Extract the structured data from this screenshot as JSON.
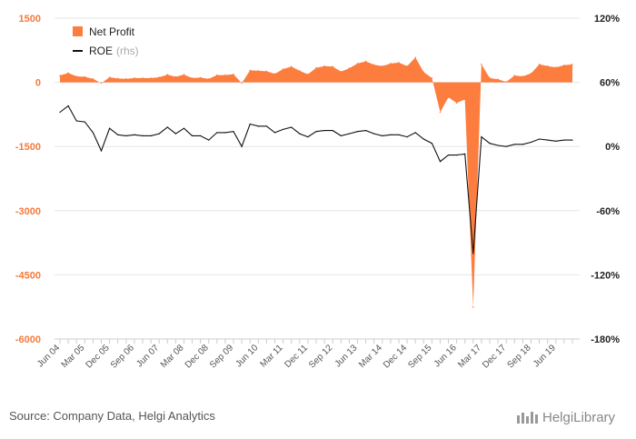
{
  "footer": {
    "source": "Source: Company Data, Helgi Analytics",
    "logo": "HelgiLibrary"
  },
  "colors": {
    "net_profit": "#fd7d3f",
    "roe": "#111111",
    "left_axis_text": "#f47a3c",
    "grid": "#e6e6e6"
  },
  "chart_data": {
    "type": "area",
    "title": "",
    "xlabel": "",
    "ylabel": "",
    "grid": true,
    "legend_position": "top-left",
    "x_tick_labels": [
      "Jun 04",
      "Mar 05",
      "Dec 05",
      "Sep 06",
      "Jun 07",
      "Mar 08",
      "Dec 08",
      "Sep 09",
      "Jun 10",
      "Mar 11",
      "Dec 11",
      "Sep 12",
      "Jun 13",
      "Mar 14",
      "Dec 14",
      "Sep 15",
      "Jun 16",
      "Mar 17",
      "Dec 17",
      "Sep 18",
      "Jun 19"
    ],
    "y_left": {
      "ylim": [
        -6000,
        1500
      ],
      "ticks": [
        -6000,
        -4500,
        -3000,
        -1500,
        0,
        1500
      ],
      "tick_labels": [
        "-6000",
        "-4500",
        "-3000",
        "-1500",
        "0",
        "1500"
      ]
    },
    "y_right": {
      "ylim": [
        -180,
        120
      ],
      "ticks": [
        -180,
        -120,
        -60,
        0,
        60,
        120
      ],
      "tick_labels": [
        "-180%",
        "-120%",
        "-60%",
        "0%",
        "60%",
        "120%"
      ],
      "legend_suffix": "(rhs)"
    },
    "x_start": "Jun 04",
    "frequency": "quarterly",
    "series": [
      {
        "name": "Net Profit",
        "kind": "area",
        "axis": "left",
        "values": [
          160,
          220,
          140,
          130,
          80,
          -20,
          120,
          90,
          80,
          100,
          100,
          100,
          120,
          180,
          130,
          180,
          100,
          110,
          80,
          170,
          170,
          190,
          -20,
          280,
          270,
          260,
          200,
          310,
          370,
          270,
          190,
          340,
          380,
          370,
          250,
          330,
          440,
          490,
          410,
          380,
          440,
          460,
          380,
          580,
          240,
          100,
          -700,
          -350,
          -480,
          -400,
          -5250,
          420,
          100,
          70,
          10,
          160,
          140,
          210,
          420,
          380,
          350,
          400,
          420
        ]
      },
      {
        "name": "ROE",
        "kind": "line",
        "axis": "right",
        "values": [
          32,
          38,
          24,
          23,
          13,
          -4,
          17,
          11,
          10,
          11,
          10,
          10,
          12,
          18,
          12,
          17,
          10,
          10,
          6,
          13,
          13,
          14,
          0,
          21,
          19,
          19,
          13,
          16,
          18,
          12,
          9,
          14,
          15,
          15,
          10,
          12,
          14,
          15,
          12,
          10,
          11,
          11,
          9,
          13,
          7,
          3,
          -14,
          -8,
          -8,
          -7,
          -100,
          9,
          3,
          1,
          0,
          2,
          2,
          4,
          7,
          6,
          5,
          6,
          6
        ]
      }
    ]
  }
}
